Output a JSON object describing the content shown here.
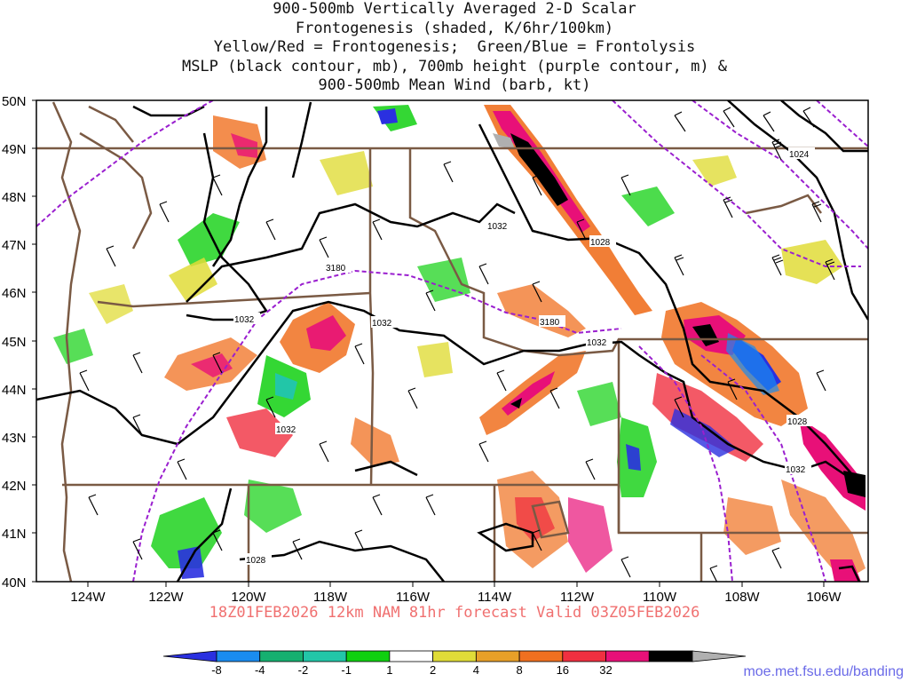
{
  "title_lines": [
    "900-500mb Vertically Averaged 2-D Scalar",
    "Frontogenesis (shaded, K/6hr/100km)",
    "Yellow/Red = Frontogenesis;  Green/Blue = Frontolysis",
    "MSLP (black contour, mb), 700mb height (purple contour, m) &",
    "900-500mb Mean Wind (barb, kt)"
  ],
  "lat_labels": [
    "50N",
    "49N",
    "48N",
    "47N",
    "46N",
    "45N",
    "44N",
    "43N",
    "42N",
    "41N",
    "40N"
  ],
  "lon_labels": [
    "124W",
    "122W",
    "120W",
    "118W",
    "116W",
    "114W",
    "112W",
    "110W",
    "108W",
    "106W"
  ],
  "valid_line": "18Z01FEB2026 12km NAM 81hr forecast Valid 03Z05FEB2026",
  "colorbar": {
    "labels": [
      "-8",
      "-4",
      "-2",
      "-1",
      "1",
      "2",
      "4",
      "8",
      "16",
      "32"
    ],
    "colors": [
      "#2a30e0",
      "#1a8cf0",
      "#16b070",
      "#22c6a8",
      "#10d010",
      "#ffffff",
      "#e0dc38",
      "#e8a028",
      "#f07020",
      "#f03040",
      "#e81078",
      "#000000",
      "#b0b0b0"
    ]
  },
  "contour_labels": {
    "mslp": [
      "1032",
      "1032",
      "1032",
      "1032",
      "1032",
      "1028",
      "1024",
      "1028",
      "1028",
      "1032"
    ],
    "height": [
      "3180",
      "3180"
    ]
  },
  "footer_url": "moe.met.fsu.edu/banding",
  "colors": {
    "mslp": "#000000",
    "height": "#9a1fcf",
    "border": "#7a5a44",
    "valid_text": "#f07070"
  }
}
